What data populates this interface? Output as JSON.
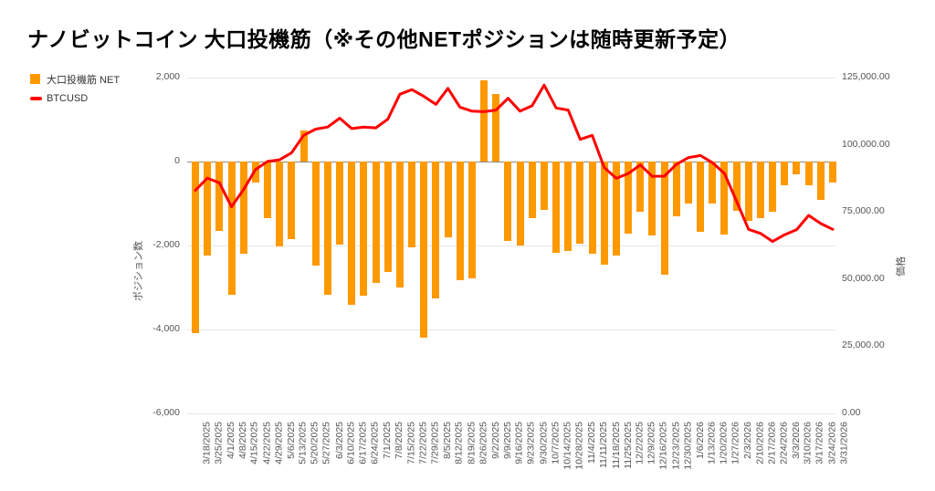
{
  "chart_data": {
    "type": "bar+line",
    "title": "ナノビットコイン 大口投機筋（※その他NETポジションは随時更新予定）",
    "categories": [
      "3/18/2025",
      "3/25/2025",
      "4/1/2025",
      "4/8/2025",
      "4/15/2025",
      "4/22/2025",
      "4/29/2025",
      "5/6/2025",
      "5/13/2025",
      "5/20/2025",
      "5/27/2025",
      "6/3/2025",
      "6/10/2025",
      "6/17/2025",
      "6/24/2025",
      "7/1/2025",
      "7/8/2025",
      "7/15/2025",
      "7/22/2025",
      "7/29/2025",
      "8/5/2025",
      "8/12/2025",
      "8/19/2025",
      "8/26/2025",
      "9/2/2025",
      "9/9/2025",
      "9/16/2025",
      "9/23/2025",
      "9/30/2025",
      "10/7/2025",
      "10/14/2025",
      "10/28/2025",
      "11/4/2025",
      "11/11/2025",
      "11/18/2025",
      "11/25/2025",
      "12/2/2025",
      "12/9/2025",
      "12/16/2025",
      "12/23/2025",
      "12/30/2025",
      "1/6/2026",
      "1/13/2026",
      "1/20/2026",
      "1/27/2026",
      "2/3/2026",
      "2/10/2026",
      "2/17/2026",
      "2/24/2026",
      "3/3/2026",
      "3/10/2026",
      "3/17/2026",
      "3/24/2026",
      "3/31/2026"
    ],
    "series": [
      {
        "name": "大口投機筋 NET",
        "type": "bar",
        "yaxis": "left",
        "color": "#FF9900",
        "values": [
          -4080,
          -2240,
          -1650,
          -3180,
          -2190,
          -500,
          -1350,
          -2020,
          -1840,
          740,
          -2470,
          -3170,
          -1980,
          -3420,
          -3200,
          -2900,
          -2630,
          -2990,
          -2050,
          -4190,
          -3270,
          -1800,
          -2820,
          -2790,
          1940,
          1610,
          -1890,
          -2010,
          -1340,
          -1150,
          -2180,
          -2140,
          -1950,
          -2190,
          -2450,
          -2230,
          -1710,
          -1190,
          -1750,
          -2700,
          -1300,
          -990,
          -1680,
          -1010,
          -1730,
          -1170,
          -1420,
          -1350,
          -1200,
          -560,
          -300,
          -560,
          -920,
          -510
        ]
      },
      {
        "name": "BTCUSD",
        "type": "line",
        "yaxis": "right",
        "color": "#FF0000",
        "values": [
          83000,
          87600,
          85800,
          76900,
          83300,
          90800,
          93800,
          94400,
          97000,
          103500,
          105800,
          106600,
          109900,
          106000,
          106600,
          106300,
          109500,
          118800,
          120500,
          118000,
          115000,
          121000,
          114000,
          112500,
          112300,
          112900,
          117300,
          112500,
          114500,
          122200,
          113700,
          112900,
          102000,
          103500,
          91500,
          87500,
          89300,
          92500,
          88200,
          88300,
          92700,
          95200,
          96000,
          93300,
          89300,
          79000,
          68500,
          67000,
          64000,
          66500,
          68400,
          73700,
          70700,
          68500
        ]
      }
    ],
    "left_axis": {
      "title": "ポジション数",
      "min": -6000,
      "max": 2000,
      "tick_values": [
        2000,
        0,
        -2000,
        -4000,
        -6000
      ],
      "tick_labels": [
        "2,000",
        "0",
        "-2,000",
        "-4,000",
        "-6,000"
      ]
    },
    "right_axis": {
      "title": "価格",
      "min": 0,
      "max": 125000,
      "tick_values": [
        125000,
        100000,
        75000,
        50000,
        25000,
        0
      ],
      "tick_labels": [
        "125,000.00",
        "100,000.00",
        "75,000.00",
        "50,000.00",
        "25,000.00",
        "0.00"
      ]
    },
    "grid": true,
    "legend_position": "top-left",
    "colors": {
      "bar": "#FF9900",
      "line": "#FF0000",
      "gridline": "#e6e6e6",
      "baseline": "#8a8a8a",
      "tick_text": "#555555",
      "title_text": "#000000"
    }
  }
}
